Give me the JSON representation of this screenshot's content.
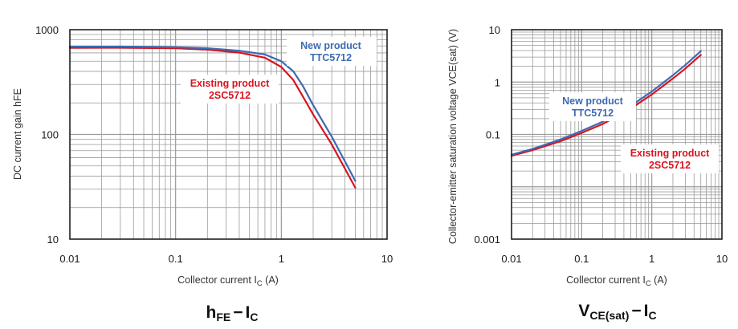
{
  "colors": {
    "new": "#3d6ab3",
    "existing": "#d6151f",
    "grid": "#9a9a9a",
    "frame": "#111111"
  },
  "chart_data": [
    {
      "type": "line",
      "title": "hFE − IC",
      "caption": {
        "main": "h",
        "sub1": "FE",
        "dash": "−",
        "main2": "I",
        "sub2": "C"
      },
      "xlabel": {
        "text": "Collector current  I",
        "sub": "C",
        "unit": " (A)"
      },
      "ylabel": "DC current gain  hFE",
      "xscale": "log",
      "yscale": "log",
      "xlim": [
        0.01,
        10
      ],
      "ylim": [
        10,
        1000
      ],
      "xticks": [
        0.01,
        0.1,
        1,
        10
      ],
      "xtick_labels": [
        "0.01",
        "0.1",
        "1",
        "10"
      ],
      "yticks": [
        10,
        100,
        1000
      ],
      "ytick_labels": [
        "10",
        "100",
        "1000"
      ],
      "grid": true,
      "series": [
        {
          "name": "New product TTC5712",
          "color": "#3d6ab3",
          "x": [
            0.01,
            0.03,
            0.1,
            0.2,
            0.4,
            0.7,
            1.0,
            1.3,
            1.6,
            2.0,
            3.0,
            5.0
          ],
          "y": [
            690,
            690,
            680,
            665,
            630,
            580,
            500,
            400,
            290,
            190,
            95,
            36
          ]
        },
        {
          "name": "Existing product 2SC5712",
          "color": "#d6151f",
          "x": [
            0.01,
            0.03,
            0.1,
            0.2,
            0.4,
            0.7,
            1.0,
            1.3,
            1.6,
            2.0,
            3.0,
            5.0
          ],
          "y": [
            670,
            672,
            665,
            645,
            605,
            540,
            440,
            330,
            230,
            155,
            80,
            31
          ]
        }
      ],
      "annotations": [
        {
          "id": "new",
          "lines": [
            "New product",
            "TTC5712"
          ],
          "color": "#3d6ab3"
        },
        {
          "id": "existing",
          "lines": [
            "Existing product",
            "2SC5712"
          ],
          "color": "#d6151f"
        }
      ]
    },
    {
      "type": "line",
      "title": "VCE(sat) − IC",
      "caption": {
        "main": "V",
        "sub1": "CE(sat)",
        "dash": "−",
        "main2": "I",
        "sub2": "C"
      },
      "xlabel": {
        "text": "Collector current  I",
        "sub": "C",
        "unit": " (A)"
      },
      "ylabel": "Collector-emitter saturation voltage  VCE(sat) (V)",
      "xscale": "log",
      "yscale": "log",
      "xlim": [
        0.01,
        10
      ],
      "ylim": [
        0.001,
        10
      ],
      "xticks": [
        0.01,
        0.1,
        1,
        10
      ],
      "xtick_labels": [
        "0.01",
        "0.1",
        "1",
        "10"
      ],
      "yticks": [
        0.001,
        0.01,
        0.1,
        1,
        10
      ],
      "ytick_labels": [
        "0.001",
        "",
        "0.1",
        "1",
        "10"
      ],
      "grid": true,
      "series": [
        {
          "name": "New product TTC5712",
          "color": "#3d6ab3",
          "x": [
            0.01,
            0.02,
            0.05,
            0.1,
            0.2,
            0.5,
            1.0,
            2.0,
            3.0,
            5.0
          ],
          "y": [
            0.041,
            0.053,
            0.08,
            0.117,
            0.175,
            0.35,
            0.66,
            1.35,
            2.1,
            3.9
          ]
        },
        {
          "name": "Existing product 2SC5712",
          "color": "#d6151f",
          "x": [
            0.01,
            0.02,
            0.05,
            0.1,
            0.2,
            0.5,
            1.0,
            2.0,
            3.0,
            5.0
          ],
          "y": [
            0.039,
            0.05,
            0.074,
            0.107,
            0.158,
            0.31,
            0.58,
            1.17,
            1.8,
            3.3
          ]
        }
      ],
      "annotations": [
        {
          "id": "new",
          "lines": [
            "New product",
            "TTC5712"
          ],
          "color": "#3d6ab3"
        },
        {
          "id": "existing",
          "lines": [
            "Existing product",
            "2SC5712"
          ],
          "color": "#d6151f"
        }
      ]
    }
  ]
}
